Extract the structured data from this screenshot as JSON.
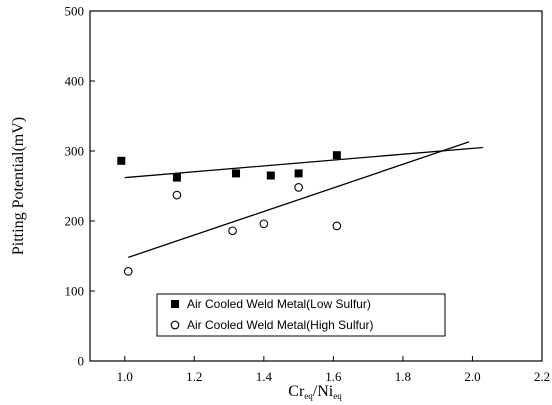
{
  "chart_data": {
    "type": "scatter",
    "xlabel": {
      "main": "Cr",
      "sub1": "eq",
      "mid": "/Ni",
      "sub2": "eq"
    },
    "ylabel": "Pitting Potential(mV)",
    "xlim": [
      0.9,
      2.2
    ],
    "ylim": [
      0,
      500
    ],
    "xticks": [
      1.0,
      1.2,
      1.4,
      1.6,
      1.8,
      2.0,
      2.2
    ],
    "xtick_labels": [
      "1.0",
      "1.2",
      "1.4",
      "1.6",
      "1.8",
      "2.0",
      "2.2"
    ],
    "yticks": [
      0,
      100,
      200,
      300,
      400,
      500
    ],
    "ytick_labels": [
      "0",
      "100",
      "200",
      "300",
      "400",
      "500"
    ],
    "grid": false,
    "legend_position": "lower-center",
    "series": [
      {
        "name": "Air Cooled Weld Metal(Low Sulfur)",
        "marker": "filled-square",
        "x": [
          0.99,
          1.15,
          1.32,
          1.42,
          1.5,
          1.61
        ],
        "y": [
          286,
          262,
          268,
          265,
          268,
          294
        ],
        "fit": {
          "x": [
            1.0,
            2.03
          ],
          "y": [
            262,
            305
          ]
        }
      },
      {
        "name": "Air Cooled Weld Metal(High Sulfur)",
        "marker": "open-circle",
        "x": [
          1.01,
          1.15,
          1.31,
          1.4,
          1.5,
          1.61
        ],
        "y": [
          128,
          237,
          186,
          196,
          248,
          193
        ],
        "fit": {
          "x": [
            1.01,
            1.99
          ],
          "y": [
            148,
            313
          ]
        }
      }
    ]
  }
}
